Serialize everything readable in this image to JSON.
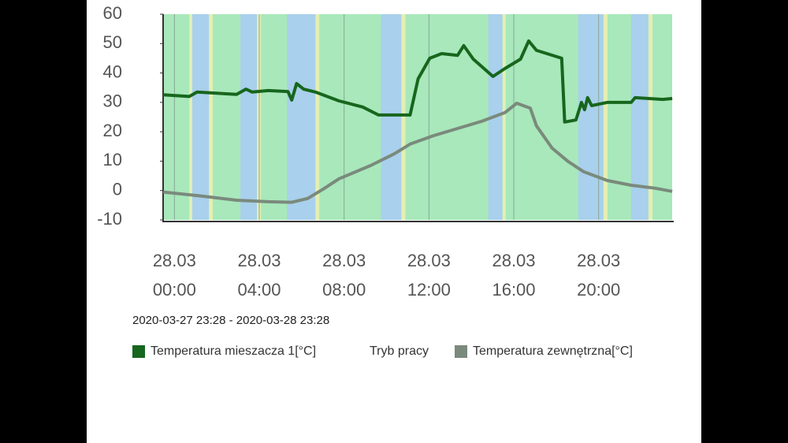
{
  "chart_data": {
    "type": "line",
    "range_label": "2020-03-27 23:28 - 2020-03-28 23:28",
    "xlim": [
      -0.533,
      23.467
    ],
    "xticks": [
      {
        "value": 0,
        "label": "28.03 00:00"
      },
      {
        "value": 4,
        "label": "28.03 04:00"
      },
      {
        "value": 8,
        "label": "28.03 08:00"
      },
      {
        "value": 12,
        "label": "28.03 12:00"
      },
      {
        "value": 16,
        "label": "28.03 16:00"
      },
      {
        "value": 20,
        "label": "28.03 20:00"
      }
    ],
    "ylim": [
      -10,
      60
    ],
    "yticks": [
      -10,
      0,
      10,
      20,
      30,
      40,
      50,
      60
    ],
    "grid": true,
    "plot_background": "#a8e8bb",
    "mode_bands": {
      "name": "Tryb pracy",
      "bands": [
        {
          "start": 0.7,
          "end": 0.84,
          "color": "#e4efb2"
        },
        {
          "start": 0.84,
          "end": 1.63,
          "color": "#a9d0ec"
        },
        {
          "start": 1.63,
          "end": 1.81,
          "color": "#e4efb2"
        },
        {
          "start": 3.11,
          "end": 3.89,
          "color": "#a9d0ec"
        },
        {
          "start": 3.89,
          "end": 4.08,
          "color": "#e4efb2"
        },
        {
          "start": 5.31,
          "end": 6.65,
          "color": "#a9d0ec"
        },
        {
          "start": 6.65,
          "end": 6.83,
          "color": "#e4efb2"
        },
        {
          "start": 9.74,
          "end": 10.7,
          "color": "#a9d0ec"
        },
        {
          "start": 10.7,
          "end": 10.89,
          "color": "#e4efb2"
        },
        {
          "start": 14.8,
          "end": 15.47,
          "color": "#a9d0ec"
        },
        {
          "start": 15.47,
          "end": 15.62,
          "color": "#e4efb2"
        },
        {
          "start": 19.04,
          "end": 20.23,
          "color": "#a9d0ec"
        },
        {
          "start": 20.23,
          "end": 20.42,
          "color": "#e4efb2"
        },
        {
          "start": 21.53,
          "end": 22.35,
          "color": "#a9d0ec"
        },
        {
          "start": 22.35,
          "end": 22.54,
          "color": "#e4efb2"
        }
      ]
    },
    "series": [
      {
        "name": "Temperatura mieszacza 1[°C]",
        "color": "#17661d",
        "x": [
          -0.53,
          0.7,
          1.07,
          2.93,
          3.37,
          3.67,
          4.42,
          5.35,
          5.53,
          5.76,
          6.09,
          6.65,
          7.76,
          8.88,
          9.62,
          11.11,
          11.49,
          12.04,
          12.6,
          13.35,
          13.64,
          14.09,
          15.02,
          15.58,
          16.32,
          16.7,
          17.07,
          18.26,
          18.4,
          18.93,
          19.19,
          19.34,
          19.48,
          19.67,
          20.41,
          21.53,
          21.72,
          23.02,
          23.47
        ],
        "values": [
          32.6,
          32,
          33.5,
          32.7,
          34.5,
          33.5,
          34,
          33.7,
          30.8,
          36.4,
          34.5,
          33.5,
          30.5,
          28.4,
          25.7,
          25.7,
          38,
          45,
          46.6,
          46,
          49.3,
          44.7,
          38.8,
          41.5,
          44.7,
          50.9,
          47.7,
          45,
          23.3,
          24,
          30,
          27.5,
          31.6,
          28.9,
          30,
          30,
          31.6,
          31,
          31.3
        ]
      },
      {
        "name": "Temperatura zewnętrzna[°C]",
        "color": "#7a8a7c",
        "x": [
          -0.53,
          1.44,
          2.93,
          4.42,
          5.53,
          6.28,
          7.02,
          7.76,
          9.25,
          10.37,
          11.11,
          12.23,
          13.35,
          14.46,
          15.58,
          16.14,
          16.78,
          17.07,
          17.81,
          18.56,
          19.3,
          20.41,
          21.53,
          22.65,
          23.47
        ],
        "values": [
          -0.5,
          -2,
          -3.3,
          -3.8,
          -4,
          -2.7,
          0.5,
          4,
          8.5,
          12.5,
          15.8,
          18.7,
          21.1,
          23.5,
          26.5,
          29.7,
          28,
          22,
          14.4,
          9.9,
          6.4,
          3.4,
          1.8,
          0.8,
          -0.3
        ]
      }
    ]
  }
}
